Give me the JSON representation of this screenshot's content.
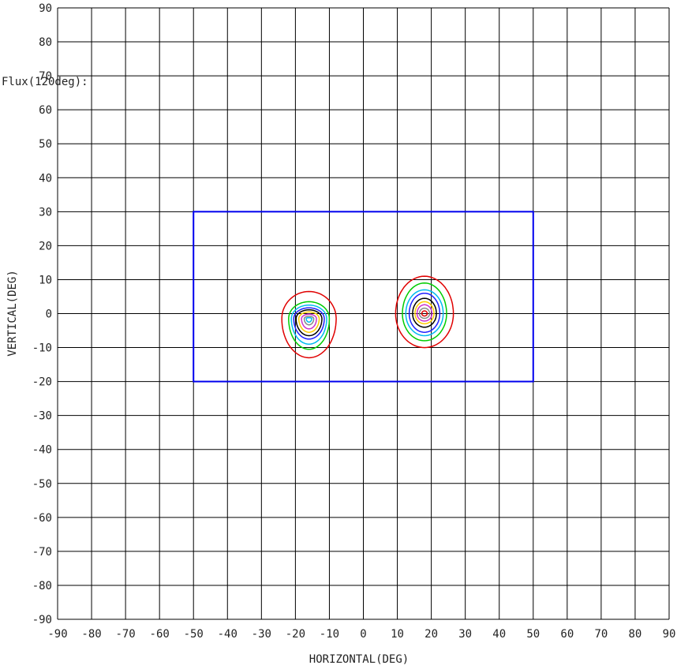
{
  "chart_data": {
    "type": "contour",
    "annotation": "Flux(120deg):",
    "xlabel": "HORIZONTAL(DEG)",
    "ylabel": "VERTICAL(DEG)",
    "xlim": [
      -90,
      90
    ],
    "ylim": [
      -90,
      90
    ],
    "xticks": [
      -90,
      -80,
      -70,
      -60,
      -50,
      -40,
      -30,
      -20,
      -10,
      0,
      10,
      20,
      30,
      40,
      50,
      60,
      70,
      80,
      90
    ],
    "yticks": [
      -90,
      -80,
      -70,
      -60,
      -50,
      -40,
      -30,
      -20,
      -10,
      0,
      10,
      20,
      30,
      40,
      50,
      60,
      70,
      80,
      90
    ],
    "grid": true,
    "region": {
      "x": [
        -50,
        50
      ],
      "y": [
        -20,
        30
      ],
      "color": "#0000ee"
    },
    "contour_sets": [
      {
        "center": [
          -16,
          -1.5
        ],
        "levels": [
          {
            "color": "#e00000",
            "rx": 8,
            "ry_top": 8,
            "ry_bottom": 11.5
          },
          {
            "color": "#00cc00",
            "rx": 6,
            "ry_top": 5,
            "ry_bottom": 9
          },
          {
            "color": "#00bbee",
            "rx": 5.2,
            "ry_top": 4,
            "ry_bottom": 7.5
          },
          {
            "color": "#2020ff",
            "rx": 4.5,
            "ry_top": 3.2,
            "ry_bottom": 6
          },
          {
            "color": "#000000",
            "rx": 3.8,
            "ry_top": 2.6,
            "ry_bottom": 5
          },
          {
            "color": "#ffcc00",
            "rx": 3.0,
            "ry_top": 2.0,
            "ry_bottom": 4
          },
          {
            "color": "#cc33cc",
            "rx": 2.2,
            "ry_top": 1.3,
            "ry_bottom": 3
          },
          {
            "color": "#888888",
            "rx": 1.4,
            "ry_top": 0.7,
            "ry_bottom": 1.8
          },
          {
            "color": "#00bbee",
            "rx": 0.8,
            "ry_top": 0.3,
            "ry_bottom": 1.0
          }
        ]
      },
      {
        "center": [
          18,
          0
        ],
        "levels": [
          {
            "color": "#e00000",
            "rx": 8.5,
            "ry_top": 11,
            "ry_bottom": 10
          },
          {
            "color": "#00cc00",
            "rx": 6.5,
            "ry_top": 9,
            "ry_bottom": 8
          },
          {
            "color": "#00bbee",
            "rx": 5.5,
            "ry_top": 7,
            "ry_bottom": 6.5
          },
          {
            "color": "#2020ff",
            "rx": 4.5,
            "ry_top": 6,
            "ry_bottom": 5.5
          },
          {
            "color": "#000000",
            "rx": 3.5,
            "ry_top": 4.5,
            "ry_bottom": 4
          },
          {
            "color": "#ffcc00",
            "rx": 2.8,
            "ry_top": 3.5,
            "ry_bottom": 3
          },
          {
            "color": "#cc33cc",
            "rx": 2.2,
            "ry_top": 2.6,
            "ry_bottom": 2.2
          },
          {
            "color": "#888888",
            "rx": 1.5,
            "ry_top": 1.6,
            "ry_bottom": 1.4
          },
          {
            "color": "#e00000",
            "rx": 0.8,
            "ry_top": 0.8,
            "ry_bottom": 0.7
          }
        ]
      }
    ]
  }
}
